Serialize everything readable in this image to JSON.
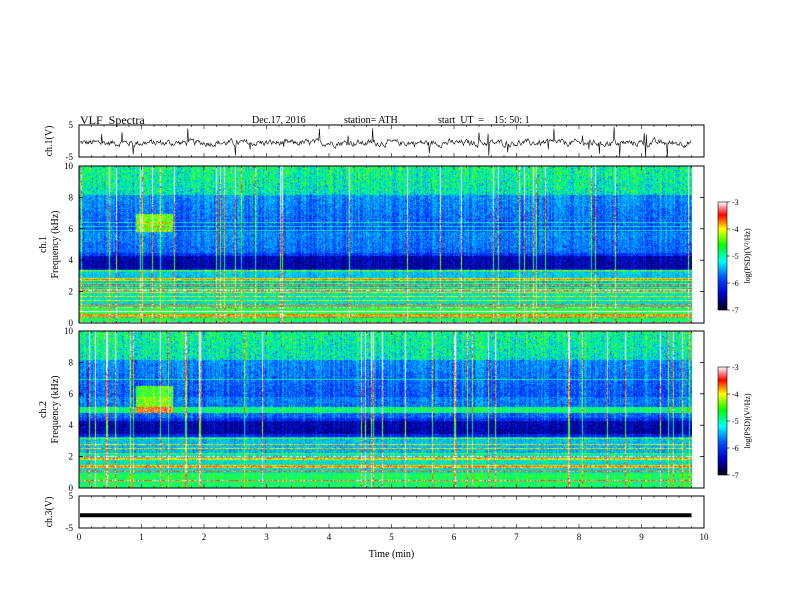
{
  "header": {
    "title": "VLF  Spectra",
    "date": "Dec.17, 2016",
    "station": "station= ATH",
    "start": "start  UT  =    15: 50: 1"
  },
  "colors": {
    "background": "#ffffff",
    "axis": "#000000",
    "spectrogram_low": "#000a3c",
    "spectrogram_mid": "#0000ff",
    "spectrogram_high": "#00ff00",
    "spectrogram_peak": "#ff0000"
  },
  "chart_data": [
    {
      "type": "line",
      "name": "ch1-waveform",
      "ylabel": "ch.1(V)",
      "ylim": [
        -5,
        5
      ],
      "yticks": [
        "5",
        "-5"
      ],
      "xlim": [
        0,
        10
      ],
      "series": [
        {
          "values_note": "noisy waveform near 0 V with spikes"
        }
      ]
    },
    {
      "type": "heatmap",
      "name": "ch1-spectrogram",
      "ylabel_top": "ch.1",
      "ylabel": "Frequency  (kHz)",
      "ylim": [
        0,
        10
      ],
      "yticks": [
        "0",
        "2",
        "4",
        "6",
        "8",
        "10"
      ],
      "xlim": [
        0,
        10
      ],
      "colorbar": {
        "label": "log(PSD)(V²/Hz)",
        "range": [
          -7,
          -3
        ],
        "ticks": [
          "-3",
          "-4",
          "-5",
          "-6",
          "-7"
        ]
      },
      "emission_patch": {
        "x": [
          0.9,
          1.5
        ],
        "y": [
          5.8,
          7.0
        ]
      }
    },
    {
      "type": "heatmap",
      "name": "ch2-spectrogram",
      "ylabel_top": "ch.2",
      "ylabel": "Frequency  (kHz)",
      "ylim": [
        0,
        10
      ],
      "yticks": [
        "0",
        "2",
        "4",
        "6",
        "8",
        "10"
      ],
      "xlim": [
        0,
        10
      ],
      "colorbar": {
        "label": "log(PSD)(V²/Hz)",
        "range": [
          -7,
          -3
        ],
        "ticks": [
          "-3",
          "-4",
          "-5",
          "-6",
          "-7"
        ]
      },
      "emission_patch": {
        "x": [
          0.9,
          1.5
        ],
        "y": [
          4.8,
          6.5
        ]
      }
    },
    {
      "type": "line",
      "name": "ch3-waveform",
      "ylabel": "ch.3(V)",
      "ylim": [
        -5,
        5
      ],
      "yticks": [
        "5",
        "-5"
      ],
      "xlim": [
        0,
        10
      ],
      "series": [
        {
          "values_note": "flat line near -1 V"
        }
      ]
    }
  ],
  "xaxis": {
    "label": "Time  (min)",
    "ticks": [
      "0",
      "1",
      "2",
      "3",
      "4",
      "5",
      "6",
      "7",
      "8",
      "9",
      "10"
    ],
    "range": [
      0,
      10
    ],
    "data_end": 9.8
  }
}
